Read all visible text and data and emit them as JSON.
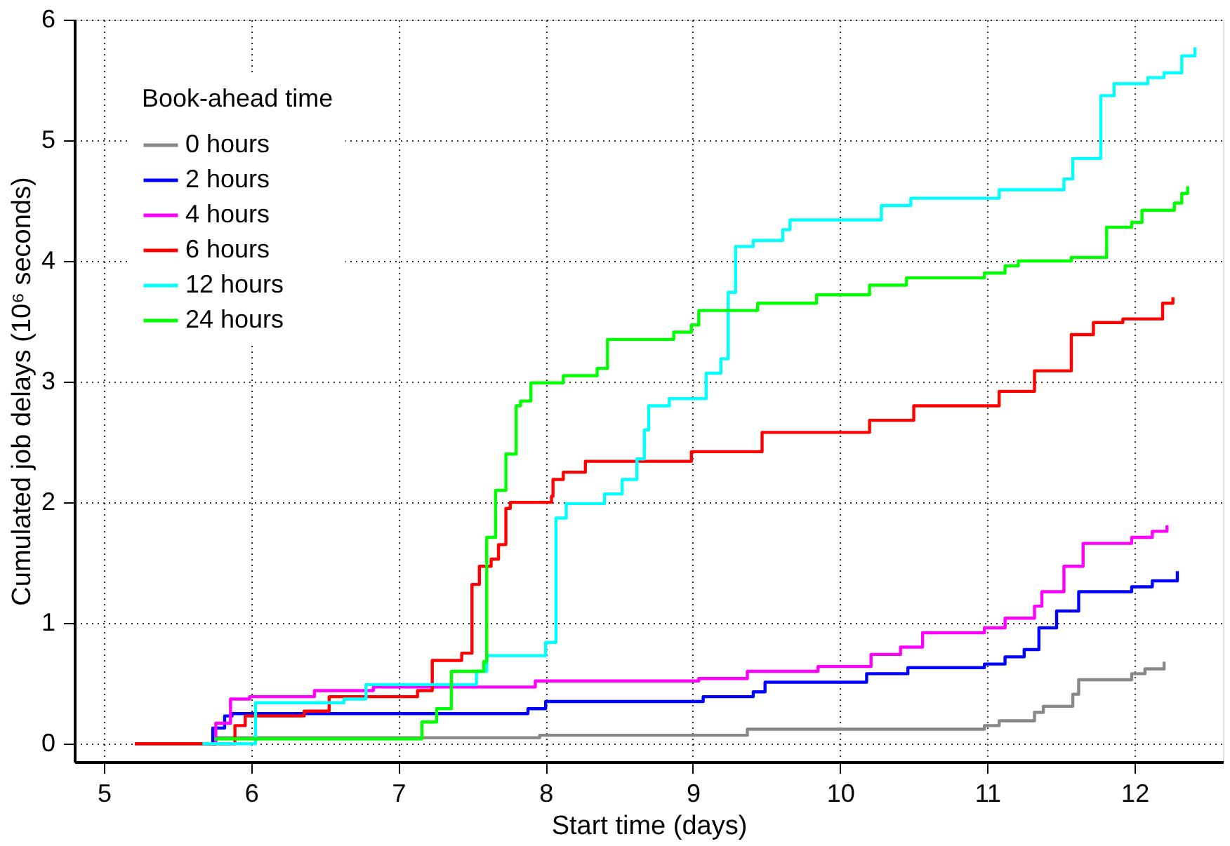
{
  "chart_data": {
    "type": "step",
    "xlabel": "Start time (days)",
    "ylabel": "Cumulated job delays (10⁶ seconds)",
    "legend_title": "Book-ahead time",
    "xlim": [
      4.8,
      12.6
    ],
    "ylim": [
      -0.15,
      6
    ],
    "xticks": [
      5,
      6,
      7,
      8,
      9,
      10,
      11,
      12
    ],
    "yticks": [
      0,
      1,
      2,
      3,
      4,
      5,
      6
    ],
    "grid": true,
    "line_style": "solid",
    "legend": "top left",
    "marker": "none",
    "series": [
      {
        "name": "0 hours",
        "color": "#888888",
        "x": [
          5.21,
          5.76,
          7.96,
          9.37,
          10.98,
          11.08,
          11.32,
          11.38,
          11.58,
          11.62,
          11.98,
          12.07,
          12.2
        ],
        "values": [
          0,
          0.05,
          0.07,
          0.12,
          0.15,
          0.19,
          0.26,
          0.31,
          0.41,
          0.53,
          0.58,
          0.62,
          0.68
        ]
      },
      {
        "name": "2 hours",
        "color": "#0000ff",
        "x": [
          5.72,
          5.74,
          5.82,
          5.87,
          7.88,
          8.0,
          9.07,
          9.41,
          9.49,
          10.18,
          10.46,
          10.98,
          11.12,
          11.25,
          11.35,
          11.47,
          11.62,
          11.98,
          12.12,
          12.29
        ],
        "values": [
          0,
          0.13,
          0.23,
          0.25,
          0.29,
          0.35,
          0.39,
          0.43,
          0.51,
          0.58,
          0.63,
          0.66,
          0.72,
          0.78,
          0.96,
          1.1,
          1.26,
          1.3,
          1.35,
          1.43
        ]
      },
      {
        "name": "4 hours",
        "color": "#ff00ff",
        "x": [
          5.72,
          5.76,
          5.86,
          5.99,
          6.43,
          6.83,
          7.93,
          9.04,
          9.37,
          9.85,
          10.21,
          10.41,
          10.56,
          10.98,
          11.12,
          11.32,
          11.37,
          11.52,
          11.65,
          11.98,
          12.12,
          12.22
        ],
        "values": [
          0,
          0.17,
          0.37,
          0.39,
          0.44,
          0.47,
          0.52,
          0.54,
          0.6,
          0.64,
          0.74,
          0.8,
          0.92,
          0.96,
          1.04,
          1.14,
          1.26,
          1.47,
          1.66,
          1.71,
          1.76,
          1.81
        ]
      },
      {
        "name": "6 hours",
        "color": "#ff0000",
        "x": [
          5.21,
          5.89,
          5.96,
          6.36,
          6.53,
          7.13,
          7.23,
          7.43,
          7.5,
          7.55,
          7.63,
          7.68,
          7.73,
          7.76,
          8.04,
          8.05,
          8.12,
          8.27,
          8.99,
          9.47,
          10.2,
          10.5,
          11.08,
          11.32,
          11.57,
          11.72,
          11.92,
          12.19,
          12.26
        ],
        "values": [
          0,
          0.15,
          0.23,
          0.27,
          0.39,
          0.44,
          0.69,
          0.75,
          1.32,
          1.47,
          1.53,
          1.65,
          1.95,
          2.0,
          2.05,
          2.19,
          2.25,
          2.34,
          2.42,
          2.58,
          2.68,
          2.8,
          2.92,
          3.09,
          3.39,
          3.49,
          3.52,
          3.65,
          3.7
        ]
      },
      {
        "name": "12 hours",
        "color": "#00ffff",
        "x": [
          5.67,
          6.03,
          6.63,
          6.78,
          7.53,
          7.6,
          8.0,
          8.07,
          8.14,
          8.4,
          8.52,
          8.62,
          8.67,
          8.7,
          8.84,
          9.09,
          9.19,
          9.24,
          9.29,
          9.41,
          9.61,
          9.66,
          10.28,
          10.48,
          11.08,
          11.52,
          11.58,
          11.77,
          11.86,
          12.09,
          12.2,
          12.32,
          12.41
        ],
        "values": [
          0,
          0.34,
          0.37,
          0.49,
          0.6,
          0.73,
          0.84,
          1.87,
          1.99,
          2.07,
          2.19,
          2.36,
          2.6,
          2.8,
          2.86,
          3.07,
          3.19,
          3.74,
          4.12,
          4.17,
          4.26,
          4.34,
          4.46,
          4.52,
          4.59,
          4.68,
          4.85,
          5.37,
          5.47,
          5.52,
          5.56,
          5.7,
          5.77
        ]
      },
      {
        "name": "24 hours",
        "color": "#00ff00",
        "x": [
          5.75,
          7.12,
          7.16,
          7.26,
          7.36,
          7.58,
          7.6,
          7.66,
          7.73,
          7.8,
          7.83,
          7.9,
          8.12,
          8.35,
          8.42,
          8.87,
          8.99,
          9.04,
          9.44,
          9.84,
          10.2,
          10.45,
          10.98,
          11.12,
          11.21,
          11.57,
          11.81,
          11.98,
          12.05,
          12.27,
          12.32,
          12.36
        ],
        "values": [
          0.04,
          0.04,
          0.18,
          0.29,
          0.6,
          0.68,
          1.71,
          2.1,
          2.4,
          2.8,
          2.84,
          2.99,
          3.05,
          3.11,
          3.35,
          3.41,
          3.47,
          3.59,
          3.65,
          3.72,
          3.8,
          3.86,
          3.9,
          3.96,
          4.0,
          4.03,
          4.28,
          4.32,
          4.42,
          4.48,
          4.56,
          4.62
        ]
      }
    ]
  }
}
